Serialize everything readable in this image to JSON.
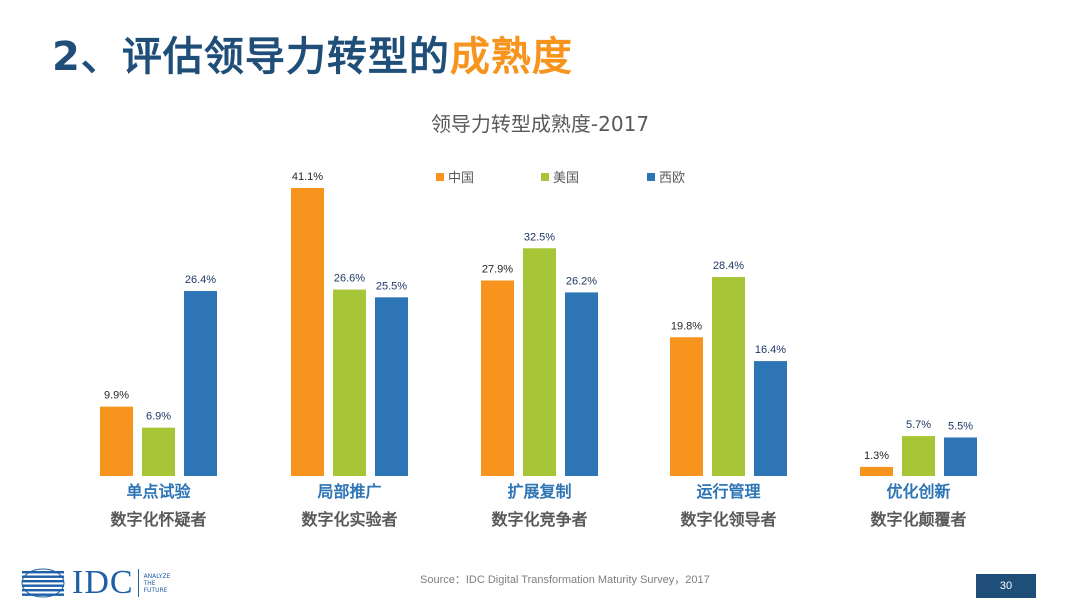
{
  "slide": {
    "title_prefix": "2、评估领导力转型的",
    "title_highlight": "成熟度",
    "source": "Source：IDC Digital Transformation Maturity Survey，2017",
    "page_number": "30"
  },
  "logo": {
    "text": "IDC",
    "tagline": [
      "ANALYZE",
      "THE",
      "FUTURE"
    ]
  },
  "colors": {
    "china": "#f7941d",
    "usa": "#a6c637",
    "west_europe": "#2e75b6",
    "title_dark": "#1f4e79",
    "title_highlight": "#f7941d",
    "category_label": "#2e75b6",
    "sub_label": "#595959"
  },
  "chart_data": {
    "type": "bar",
    "title": "领导力转型成熟度-2017",
    "categories": [
      "单点试验",
      "局部推广",
      "扩展复制",
      "运行管理",
      "优化创新"
    ],
    "subcategories": [
      "数字化怀疑者",
      "数字化实验者",
      "数字化竞争者",
      "数字化领导者",
      "数字化颠覆者"
    ],
    "series": [
      {
        "name": "中国",
        "values": [
          9.9,
          41.1,
          27.9,
          19.8,
          1.3
        ],
        "labels": [
          "9.9%",
          "41.1%",
          "27.9%",
          "19.8%",
          "1.3%"
        ]
      },
      {
        "name": "美国",
        "values": [
          6.9,
          26.6,
          32.5,
          28.4,
          5.7
        ],
        "labels": [
          "6.9%",
          "26.6%",
          "32.5%",
          "28.4%",
          "5.7%"
        ]
      },
      {
        "name": "西欧",
        "values": [
          26.4,
          25.5,
          26.2,
          16.4,
          5.5
        ],
        "labels": [
          "26.4%",
          "25.5%",
          "26.2%",
          "16.4%",
          "5.5%"
        ]
      }
    ],
    "unit": "%",
    "ylim": [
      0,
      41.1
    ],
    "legend_position": "top-center"
  }
}
